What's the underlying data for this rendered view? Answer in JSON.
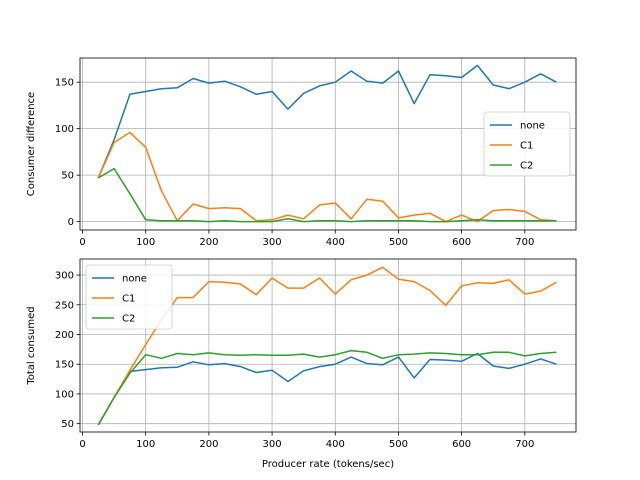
{
  "chart_data": [
    {
      "type": "line",
      "xlabel": "",
      "ylabel": "Consumer difference",
      "xlim": [
        -4,
        781
      ],
      "ylim": [
        -9,
        176
      ],
      "xticks": [
        0,
        100,
        200,
        300,
        400,
        500,
        600,
        700
      ],
      "yticks": [
        0,
        50,
        100,
        150
      ],
      "grid": true,
      "legend_position": "center-right",
      "x": [
        25,
        50,
        75,
        100,
        125,
        150,
        175,
        200,
        225,
        250,
        275,
        300,
        325,
        350,
        375,
        400,
        425,
        450,
        475,
        500,
        525,
        550,
        575,
        600,
        625,
        650,
        675,
        700,
        725,
        750
      ],
      "series": [
        {
          "name": "none",
          "color": "#1f77b4",
          "values": [
            47,
            88,
            137,
            140,
            143,
            144,
            154,
            149,
            151,
            145,
            137,
            140,
            121,
            138,
            146,
            150,
            162,
            151,
            149,
            162,
            127,
            158,
            157,
            155,
            168,
            147,
            143,
            150,
            159,
            150
          ]
        },
        {
          "name": "C1",
          "color": "#ff7f0e",
          "values": [
            47,
            85,
            96,
            80,
            33,
            1,
            19,
            14,
            15,
            14,
            1,
            2,
            7,
            3,
            18,
            20,
            3,
            24,
            22,
            4,
            7,
            9,
            0,
            7,
            0,
            12,
            13,
            11,
            2,
            1
          ]
        },
        {
          "name": "C2",
          "color": "#2ca02c",
          "values": [
            47,
            57,
            30,
            2,
            1,
            1,
            1,
            0,
            1,
            0,
            0,
            0,
            3,
            0,
            1,
            1,
            0,
            1,
            1,
            1,
            1,
            0,
            0,
            1,
            2,
            1,
            1,
            1,
            1,
            1
          ]
        }
      ]
    },
    {
      "type": "line",
      "xlabel": "Producer rate (tokens/sec)",
      "ylabel": "Total consumed",
      "xlim": [
        -4,
        781
      ],
      "ylim": [
        36,
        327
      ],
      "xticks": [
        0,
        100,
        200,
        300,
        400,
        500,
        600,
        700
      ],
      "yticks": [
        50,
        100,
        150,
        200,
        250,
        300
      ],
      "grid": true,
      "legend_position": "upper-left",
      "x": [
        25,
        50,
        75,
        100,
        125,
        150,
        175,
        200,
        225,
        250,
        275,
        300,
        325,
        350,
        375,
        400,
        425,
        450,
        475,
        500,
        525,
        550,
        575,
        600,
        625,
        650,
        675,
        700,
        725,
        750
      ],
      "series": [
        {
          "name": "none",
          "color": "#1f77b4",
          "values": [
            48,
            94,
            138,
            141,
            144,
            145,
            154,
            149,
            151,
            146,
            136,
            140,
            121,
            139,
            146,
            150,
            162,
            151,
            149,
            162,
            127,
            158,
            157,
            155,
            168,
            147,
            143,
            150,
            159,
            150
          ]
        },
        {
          "name": "C1",
          "color": "#ff7f0e",
          "values": [
            48,
            94,
            140,
            183,
            225,
            262,
            262,
            289,
            288,
            285,
            267,
            295,
            278,
            278,
            295,
            268,
            292,
            300,
            313,
            293,
            289,
            274,
            249,
            282,
            287,
            286,
            292,
            268,
            273,
            288
          ]
        },
        {
          "name": "C2",
          "color": "#2ca02c",
          "values": [
            48,
            94,
            135,
            166,
            160,
            168,
            166,
            169,
            166,
            165,
            166,
            165,
            165,
            167,
            162,
            166,
            173,
            170,
            160,
            166,
            167,
            169,
            168,
            166,
            166,
            170,
            170,
            164,
            168,
            170
          ]
        }
      ]
    }
  ]
}
